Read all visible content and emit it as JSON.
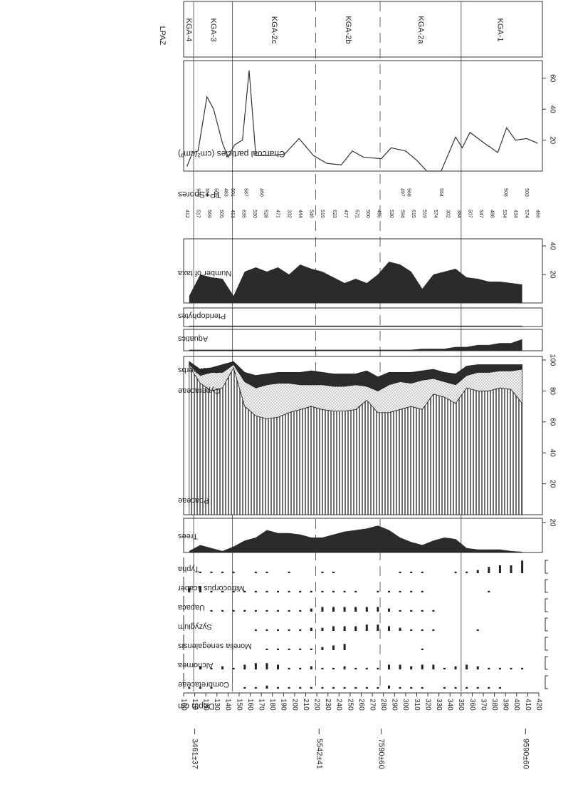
{
  "chart_data": {
    "type": "pollen",
    "depth_label": "Depth cm",
    "depth_lim": [
      100,
      420
    ],
    "depth_ticks": [
      100,
      110,
      120,
      130,
      140,
      150,
      160,
      170,
      180,
      190,
      200,
      210,
      220,
      230,
      240,
      250,
      260,
      270,
      280,
      290,
      300,
      310,
      320,
      330,
      340,
      350,
      360,
      370,
      380,
      390,
      400,
      410,
      420
    ],
    "dates": [
      {
        "depth": 110,
        "label": "3461±37"
      },
      {
        "depth": 222,
        "label": "5542±41"
      },
      {
        "depth": 278,
        "label": "7590±60"
      },
      {
        "depth": 408,
        "label": "9590±60"
      }
    ],
    "zone_title": "LPAZ",
    "zones": [
      "KGA-4",
      "KGA-3",
      "KGA-2c",
      "KGA-2b",
      "KGA-2a",
      "KGA-1"
    ],
    "zone_bounds": [
      100,
      109,
      144,
      219,
      277,
      350,
      420
    ],
    "charcoal": {
      "label": "Charcoal particles (cm²/cm³)",
      "depths": [
        103,
        108,
        113,
        121,
        127,
        135,
        140,
        146,
        153,
        159,
        165,
        178,
        191,
        204,
        217,
        229,
        242,
        252,
        262,
        278,
        287,
        300,
        310,
        319,
        332,
        345,
        351,
        358,
        371,
        383,
        391,
        399,
        409,
        419
      ],
      "values": [
        3,
        12,
        13,
        48,
        40,
        18,
        9,
        17,
        20,
        65,
        10,
        10,
        11,
        21,
        10,
        5,
        4,
        13,
        9,
        8,
        15,
        13,
        7,
        0,
        0,
        22,
        15,
        25,
        18,
        12,
        28,
        20,
        21,
        18
      ],
      "ylim": [
        0,
        70
      ],
      "yticks": [
        20,
        40,
        60
      ]
    },
    "tp_spores": {
      "label": "TP+Spores",
      "rows": [
        {
          "depths": [
            103,
            113,
            123,
            134,
            144,
            154,
            164,
            174,
            185,
            195,
            205,
            215,
            225,
            236,
            246,
            256,
            266,
            276,
            287,
            297,
            307,
            317,
            327,
            338,
            348,
            358,
            368,
            378,
            389,
            399,
            409,
            419
          ],
          "values": [
            412,
            517,
            569,
            505,
            413,
            635,
            530,
            528,
            471,
            332,
            444,
            546,
            515,
            623,
            477,
            572,
            500,
            455,
            530,
            594,
            615,
            519,
            574,
            302,
            384,
            507,
            547,
            488,
            534,
            434,
            574,
            466
          ]
        },
        {
          "depths": [
            113,
            121,
            129,
            138,
            144,
            156,
            170,
            297,
            303,
            332,
            390,
            409
          ],
          "values": [
            970,
            554,
            505,
            483,
            501,
            587,
            460,
            497,
            568,
            554,
            508,
            503
          ]
        }
      ]
    },
    "depths": [
      105,
      115,
      125,
      135,
      145,
      155,
      165,
      175,
      185,
      195,
      205,
      215,
      225,
      235,
      245,
      255,
      265,
      275,
      285,
      295,
      305,
      315,
      325,
      335,
      345,
      355,
      365,
      375,
      385,
      395,
      405
    ],
    "panels": [
      {
        "name": "Number of taxa",
        "color": "#2b2b2b",
        "ylim": [
          0,
          40
        ],
        "yticks": [
          20,
          40
        ],
        "values": [
          5,
          20,
          18,
          17,
          5,
          22,
          25,
          22,
          25,
          20,
          27,
          24,
          22,
          18,
          14,
          17,
          14,
          20,
          29,
          27,
          22,
          10,
          20,
          22,
          24,
          18,
          17,
          15,
          15,
          14,
          13
        ]
      },
      {
        "name": "Pteridophytes",
        "color": "#2b2b2b",
        "ylim": [
          0,
          10
        ],
        "values": [
          0.5,
          0.5,
          0.5,
          0.5,
          0.5,
          0.5,
          0.5,
          0.5,
          0.5,
          0.5,
          0.5,
          0.5,
          0.5,
          0.5,
          0.5,
          0.5,
          0.5,
          0.5,
          0.5,
          0.5,
          0.5,
          0.5,
          0.5,
          0.5,
          0.5,
          0.5,
          0.5,
          0.5,
          0.5,
          0.5,
          0.5
        ]
      },
      {
        "name": "Aquatics",
        "color": "#2b2b2b",
        "ylim": [
          0,
          10
        ],
        "values": [
          0.5,
          0.5,
          0.5,
          0.5,
          0.5,
          0.5,
          0.5,
          0.5,
          0.5,
          0.5,
          0.5,
          0.5,
          0.5,
          0.5,
          0.5,
          0.5,
          0.5,
          0.5,
          0.5,
          0.5,
          0.5,
          1,
          1,
          1,
          2,
          2,
          3,
          3,
          4,
          4,
          6
        ]
      },
      {
        "name": "Trees",
        "color": "#2b2b2b",
        "ylim": [
          0,
          20
        ],
        "yticks": [
          20
        ],
        "values": [
          1,
          5,
          3,
          1,
          4,
          8,
          10,
          15,
          13,
          13,
          12,
          10,
          10,
          12,
          14,
          15,
          16,
          18,
          15,
          10,
          7,
          5,
          8,
          10,
          9,
          3,
          2,
          2,
          2,
          1,
          0.5
        ]
      }
    ],
    "herbs": {
      "ylim": [
        0,
        100
      ],
      "yticks": [
        20,
        40,
        60,
        80,
        100
      ],
      "series": [
        {
          "name": "Poaceae",
          "values": [
            96,
            85,
            80,
            82,
            95,
            70,
            64,
            62,
            63,
            66,
            68,
            70,
            68,
            67,
            67,
            68,
            74,
            66,
            66,
            68,
            70,
            68,
            78,
            76,
            72,
            82,
            80,
            80,
            82,
            81,
            72
          ]
        },
        {
          "name": "Cyperaceae",
          "values": [
            1,
            5,
            12,
            10,
            2,
            16,
            18,
            22,
            22,
            19,
            16,
            14,
            16,
            16,
            16,
            16,
            9,
            14,
            18,
            18,
            15,
            19,
            10,
            10,
            12,
            8,
            12,
            12,
            11,
            12,
            22
          ]
        },
        {
          "name": "Other herbs",
          "values": [
            2,
            4,
            3,
            5,
            2,
            6,
            8,
            7,
            7,
            7,
            8,
            9,
            8,
            8,
            8,
            7,
            10,
            9,
            8,
            6,
            7,
            6,
            6,
            6,
            7,
            6,
            5,
            5,
            4,
            4,
            3
          ]
        }
      ]
    },
    "taxa_ylim": [
      0,
      10
    ],
    "taxa": [
      {
        "name": "Typha",
        "values": [
          0,
          1,
          1,
          1,
          1,
          0,
          1,
          1,
          0,
          1,
          0,
          0,
          1,
          1,
          0,
          0,
          0,
          0,
          0,
          1,
          1,
          1,
          0,
          0,
          1,
          1,
          2,
          4,
          5,
          5,
          8
        ]
      },
      {
        "name": "Mitrocorpus scaber",
        "values": [
          3,
          4,
          1,
          1,
          1,
          1,
          1,
          1,
          1,
          1,
          1,
          1,
          1,
          1,
          1,
          1,
          0,
          1,
          1,
          1,
          1,
          1,
          0,
          0,
          0,
          0,
          0,
          1,
          0,
          0,
          0
        ]
      },
      {
        "name": "Uapaca",
        "values": [
          0,
          0,
          1,
          1,
          1,
          1,
          1,
          1,
          1,
          1,
          1,
          2,
          3,
          3,
          3,
          3,
          3,
          3,
          2,
          1,
          1,
          1,
          1,
          0,
          0,
          0,
          0,
          0,
          0,
          0,
          0
        ]
      },
      {
        "name": "Syzygium",
        "values": [
          0,
          0,
          0,
          0,
          0,
          0,
          1,
          1,
          1,
          1,
          1,
          2,
          2,
          3,
          3,
          3,
          4,
          4,
          3,
          2,
          1,
          1,
          1,
          0,
          0,
          0,
          1,
          0,
          0,
          0,
          0
        ]
      },
      {
        "name": "Morelia senegalensis",
        "values": [
          0,
          0,
          0,
          0,
          0,
          0,
          0,
          1,
          1,
          1,
          1,
          1,
          2,
          3,
          4,
          0,
          0,
          0,
          0,
          0,
          0,
          1,
          0,
          0,
          0,
          0,
          0,
          0,
          0,
          0,
          0
        ]
      },
      {
        "name": "Alchornea",
        "values": [
          0,
          2,
          1,
          2,
          1,
          3,
          4,
          4,
          3,
          1,
          1,
          2,
          1,
          1,
          2,
          1,
          1,
          1,
          3,
          3,
          2,
          3,
          3,
          1,
          2,
          3,
          2,
          1,
          1,
          1,
          1
        ]
      },
      {
        "name": "Combretaceae",
        "values": [
          1,
          1,
          1,
          0,
          0,
          1,
          1,
          2,
          1,
          1,
          1,
          1,
          1,
          1,
          1,
          1,
          1,
          1,
          2,
          1,
          1,
          1,
          0,
          1,
          1,
          1,
          1,
          1,
          1,
          0,
          0
        ]
      }
    ]
  }
}
